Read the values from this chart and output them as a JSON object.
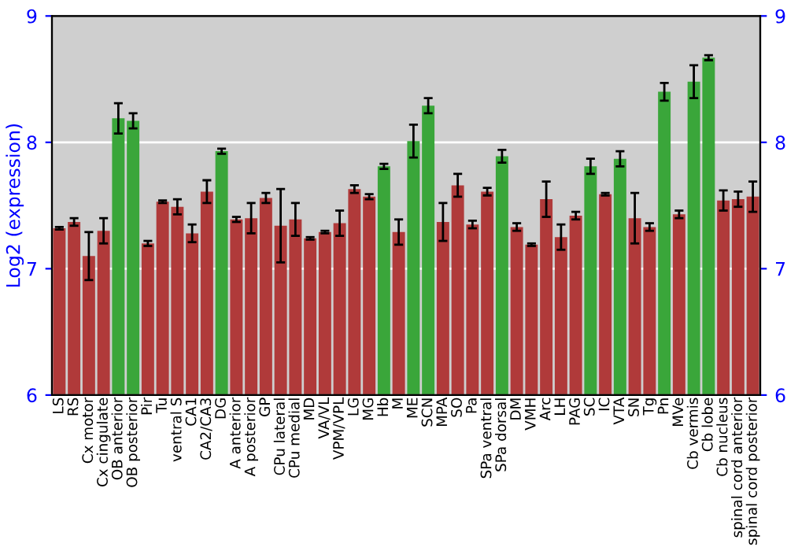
{
  "chart_data": {
    "type": "bar",
    "ylabel": "Log2 (expression)",
    "categories": [
      "LS",
      "RS",
      "Cx motor",
      "Cx cingulate",
      "OB anterior",
      "OB posterior",
      "Pir",
      "Tu",
      "ventral S",
      "CA1",
      "CA2/CA3",
      "DG",
      "A anterior",
      "A posterior",
      "GP",
      "CPu lateral",
      "CPu medial",
      "MD",
      "VA/VL",
      "VPM/VPL",
      "LG",
      "MG",
      "Hb",
      "M",
      "ME",
      "SCN",
      "MPA",
      "SO",
      "Pa",
      "SPa ventral",
      "SPa dorsal",
      "DM",
      "VMH",
      "Arc",
      "LH",
      "PAG",
      "SC",
      "IC",
      "VTA",
      "SN",
      "Tg",
      "Pn",
      "MVe",
      "Cb vermis",
      "Cb lobe",
      "Cb nucleus",
      "spinal cord anterior",
      "spinal cord posterior"
    ],
    "values": [
      7.32,
      7.37,
      7.1,
      7.3,
      8.19,
      8.17,
      7.2,
      7.53,
      7.49,
      7.28,
      7.61,
      7.93,
      7.39,
      7.4,
      7.56,
      7.34,
      7.39,
      7.24,
      7.29,
      7.36,
      7.63,
      7.57,
      7.81,
      7.29,
      8.01,
      8.29,
      7.37,
      7.66,
      7.35,
      7.61,
      7.89,
      7.33,
      7.19,
      7.55,
      7.25,
      7.42,
      7.81,
      7.59,
      7.87,
      7.4,
      7.33,
      8.4,
      7.43,
      8.48,
      8.67,
      7.54,
      7.55,
      7.57
    ],
    "errors": [
      0.01,
      0.03,
      0.19,
      0.1,
      0.12,
      0.06,
      0.02,
      0.01,
      0.06,
      0.07,
      0.09,
      0.02,
      0.02,
      0.12,
      0.04,
      0.29,
      0.13,
      0.01,
      0.01,
      0.1,
      0.03,
      0.02,
      0.02,
      0.1,
      0.13,
      0.06,
      0.15,
      0.09,
      0.03,
      0.03,
      0.05,
      0.03,
      0.01,
      0.14,
      0.1,
      0.03,
      0.06,
      0.01,
      0.06,
      0.2,
      0.03,
      0.07,
      0.03,
      0.13,
      0.02,
      0.08,
      0.06,
      0.12
    ],
    "colors": [
      "#b03a3a",
      "#b03a3a",
      "#b03a3a",
      "#b03a3a",
      "#3aa63a",
      "#3aa63a",
      "#b03a3a",
      "#b03a3a",
      "#b03a3a",
      "#b03a3a",
      "#b03a3a",
      "#3aa63a",
      "#b03a3a",
      "#b03a3a",
      "#b03a3a",
      "#b03a3a",
      "#b03a3a",
      "#b03a3a",
      "#b03a3a",
      "#b03a3a",
      "#b03a3a",
      "#b03a3a",
      "#3aa63a",
      "#b03a3a",
      "#3aa63a",
      "#3aa63a",
      "#b03a3a",
      "#b03a3a",
      "#b03a3a",
      "#b03a3a",
      "#3aa63a",
      "#b03a3a",
      "#b03a3a",
      "#b03a3a",
      "#b03a3a",
      "#b03a3a",
      "#3aa63a",
      "#b03a3a",
      "#3aa63a",
      "#b03a3a",
      "#b03a3a",
      "#3aa63a",
      "#b03a3a",
      "#3aa63a",
      "#3aa63a",
      "#b03a3a",
      "#b03a3a",
      "#b03a3a"
    ],
    "ylim": [
      6,
      9
    ],
    "yticks": [
      6,
      7,
      8,
      9
    ],
    "y2lim": [
      6,
      9
    ],
    "y2ticks": [
      6,
      7,
      8,
      9
    ],
    "grid": "y"
  }
}
